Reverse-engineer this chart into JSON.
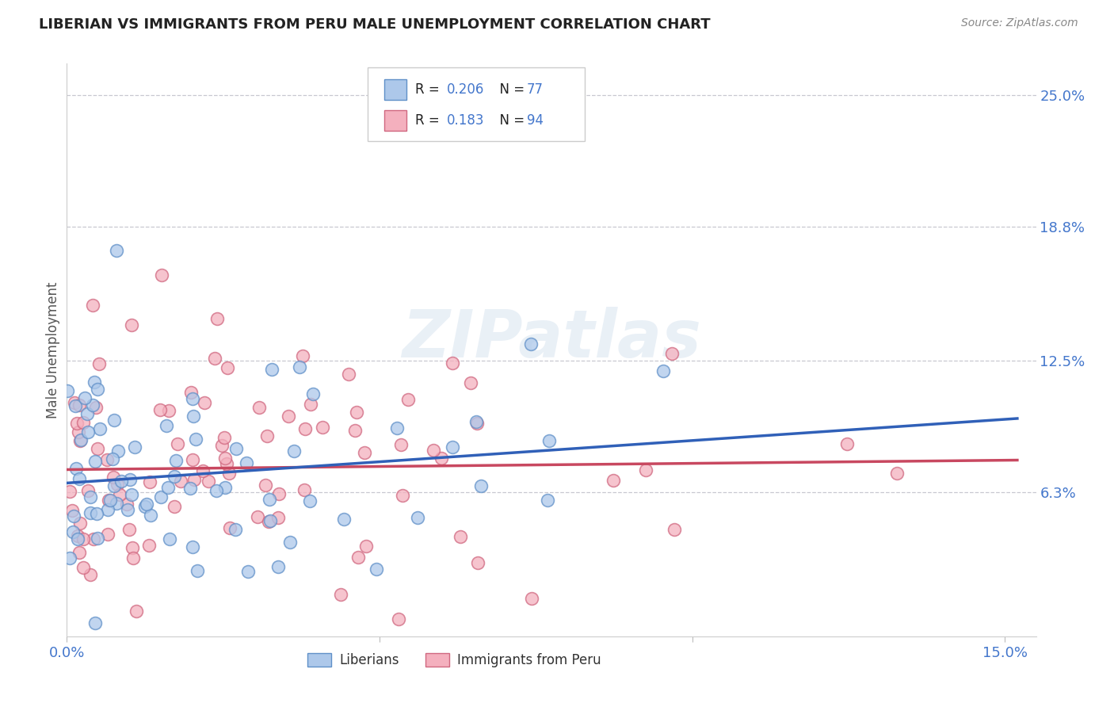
{
  "title": "LIBERIAN VS IMMIGRANTS FROM PERU MALE UNEMPLOYMENT CORRELATION CHART",
  "source": "Source: ZipAtlas.com",
  "ylabel": "Male Unemployment",
  "xlim": [
    0.0,
    0.155
  ],
  "ylim_low": -0.005,
  "ylim_high": 0.265,
  "xtick_positions": [
    0.0,
    0.05,
    0.1,
    0.15
  ],
  "xtick_labels": [
    "0.0%",
    "",
    "",
    "15.0%"
  ],
  "ytick_values": [
    0.063,
    0.125,
    0.188,
    0.25
  ],
  "ytick_labels": [
    "6.3%",
    "12.5%",
    "18.8%",
    "25.0%"
  ],
  "grid_color": "#c8c8d0",
  "bg_color": "#ffffff",
  "lib_fill": "#adc8ea",
  "lib_edge": "#6090c8",
  "peru_fill": "#f4b0be",
  "peru_edge": "#d06880",
  "lib_line_color": "#3060b8",
  "peru_line_color": "#c84860",
  "R_lib": 0.206,
  "N_lib": 77,
  "R_peru": 0.183,
  "N_peru": 94,
  "label_lib": "Liberians",
  "label_peru": "Immigrants from Peru",
  "watermark_text": "ZIPatlas",
  "title_color": "#222222",
  "source_color": "#888888",
  "axis_label_color": "#555555",
  "tick_color": "#4477cc",
  "legend_text_color": "#4477cc",
  "legend_r_color": "#222222"
}
